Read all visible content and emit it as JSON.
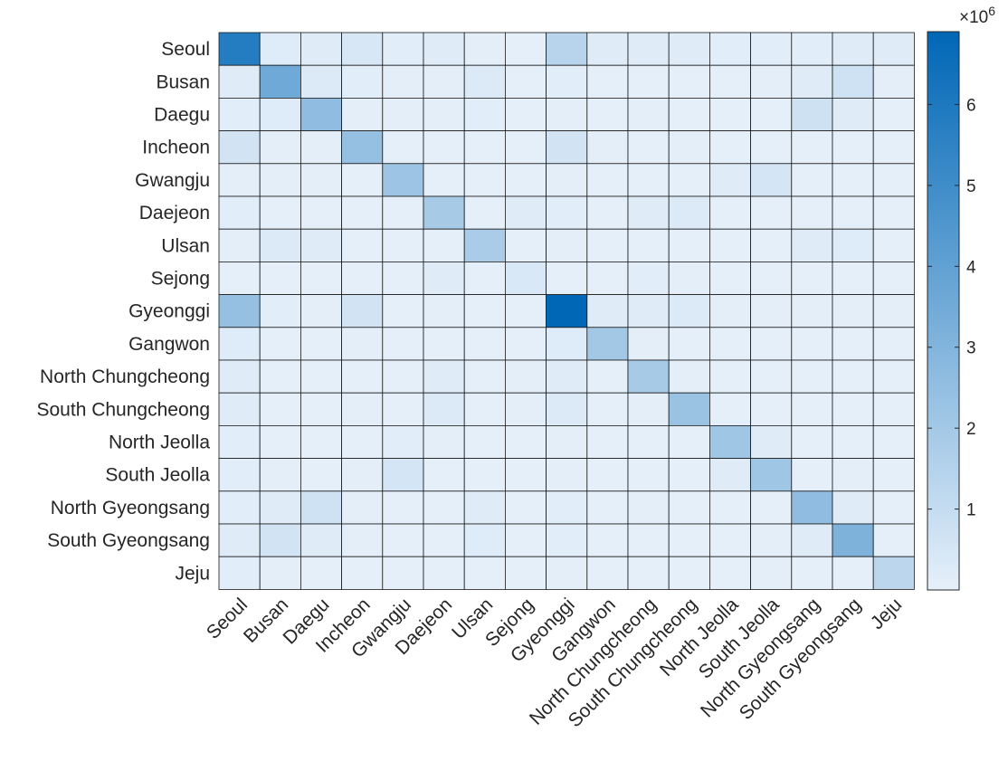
{
  "chart_data": {
    "type": "heatmap",
    "title": "",
    "xlabel": "",
    "ylabel": "",
    "rows": [
      "Seoul",
      "Busan",
      "Daegu",
      "Incheon",
      "Gwangju",
      "Daejeon",
      "Ulsan",
      "Sejong",
      "Gyeonggi",
      "Gangwon",
      "North Chungcheong",
      "South Chungcheong",
      "North Jeolla",
      "South Jeolla",
      "North Gyeongsang",
      "South Gyeongsang",
      "Jeju"
    ],
    "columns": [
      "Seoul",
      "Busan",
      "Daegu",
      "Incheon",
      "Gwangju",
      "Daejeon",
      "Ulsan",
      "Sejong",
      "Gyeonggi",
      "Gangwon",
      "North Chungcheong",
      "South Chungcheong",
      "North Jeolla",
      "South Jeolla",
      "North Gyeongsang",
      "South Gyeongsang",
      "Jeju"
    ],
    "values": [
      [
        5.8,
        0.25,
        0.2,
        0.45,
        0.15,
        0.2,
        0.1,
        0.05,
        1.4,
        0.2,
        0.2,
        0.2,
        0.15,
        0.15,
        0.15,
        0.2,
        0.2
      ],
      [
        0.2,
        3.6,
        0.3,
        0.15,
        0.1,
        0.1,
        0.3,
        0.05,
        0.15,
        0.05,
        0.05,
        0.05,
        0.05,
        0.1,
        0.2,
        0.7,
        0.1
      ],
      [
        0.15,
        0.25,
        2.6,
        0.1,
        0.1,
        0.1,
        0.15,
        0.05,
        0.1,
        0.05,
        0.1,
        0.05,
        0.05,
        0.05,
        0.75,
        0.2,
        0.05
      ],
      [
        0.6,
        0.1,
        0.1,
        2.4,
        0.05,
        0.05,
        0.05,
        0.05,
        0.6,
        0.1,
        0.05,
        0.1,
        0.05,
        0.05,
        0.05,
        0.05,
        0.05
      ],
      [
        0.1,
        0.1,
        0.1,
        0.05,
        2.2,
        0.05,
        0.05,
        0.05,
        0.1,
        0.05,
        0.05,
        0.05,
        0.2,
        0.55,
        0.05,
        0.05,
        0.05
      ],
      [
        0.15,
        0.05,
        0.05,
        0.05,
        0.05,
        1.9,
        0.05,
        0.2,
        0.15,
        0.05,
        0.2,
        0.3,
        0.05,
        0.05,
        0.05,
        0.05,
        0.05
      ],
      [
        0.1,
        0.3,
        0.2,
        0.05,
        0.05,
        0.05,
        1.8,
        0.05,
        0.1,
        0.05,
        0.05,
        0.05,
        0.05,
        0.05,
        0.2,
        0.25,
        0.05
      ],
      [
        0.05,
        0.05,
        0.05,
        0.05,
        0.05,
        0.2,
        0.05,
        0.4,
        0.05,
        0.05,
        0.15,
        0.1,
        0.05,
        0.05,
        0.05,
        0.05,
        0.05
      ],
      [
        2.4,
        0.15,
        0.1,
        0.6,
        0.05,
        0.1,
        0.05,
        0.05,
        6.9,
        0.2,
        0.2,
        0.3,
        0.1,
        0.1,
        0.1,
        0.1,
        0.1
      ],
      [
        0.25,
        0.05,
        0.05,
        0.1,
        0.05,
        0.05,
        0.05,
        0.05,
        0.25,
        2.0,
        0.1,
        0.05,
        0.05,
        0.05,
        0.05,
        0.05,
        0.05
      ],
      [
        0.2,
        0.05,
        0.05,
        0.05,
        0.05,
        0.2,
        0.05,
        0.1,
        0.2,
        0.05,
        1.9,
        0.1,
        0.05,
        0.05,
        0.05,
        0.05,
        0.05
      ],
      [
        0.2,
        0.05,
        0.05,
        0.1,
        0.05,
        0.3,
        0.05,
        0.1,
        0.3,
        0.05,
        0.1,
        2.3,
        0.05,
        0.05,
        0.05,
        0.05,
        0.05
      ],
      [
        0.15,
        0.05,
        0.05,
        0.05,
        0.15,
        0.1,
        0.05,
        0.05,
        0.1,
        0.05,
        0.05,
        0.05,
        2.1,
        0.2,
        0.05,
        0.05,
        0.05
      ],
      [
        0.15,
        0.1,
        0.05,
        0.1,
        0.55,
        0.05,
        0.05,
        0.05,
        0.1,
        0.05,
        0.05,
        0.05,
        0.2,
        2.1,
        0.05,
        0.1,
        0.05
      ],
      [
        0.15,
        0.2,
        0.7,
        0.1,
        0.05,
        0.05,
        0.2,
        0.05,
        0.15,
        0.05,
        0.1,
        0.05,
        0.05,
        0.05,
        2.6,
        0.2,
        0.05
      ],
      [
        0.2,
        0.6,
        0.2,
        0.1,
        0.05,
        0.05,
        0.25,
        0.05,
        0.15,
        0.05,
        0.05,
        0.05,
        0.05,
        0.1,
        0.2,
        3.1,
        0.05
      ],
      [
        0.15,
        0.1,
        0.05,
        0.05,
        0.05,
        0.05,
        0.05,
        0.05,
        0.1,
        0.05,
        0.05,
        0.05,
        0.05,
        0.1,
        0.05,
        0.05,
        1.3
      ]
    ],
    "value_range": [
      0,
      6.9
    ],
    "colorbar": {
      "ticks": [
        1,
        2,
        3,
        4,
        5,
        6
      ],
      "tick_labels": [
        "1",
        "2",
        "3",
        "4",
        "5",
        "6"
      ],
      "multiplier_base": "×10",
      "multiplier_exponent": "6"
    },
    "colormap": {
      "low": "#e6f0fa",
      "high": "#0067b6",
      "grid_line": "#1a1a1a"
    },
    "grid": true
  }
}
